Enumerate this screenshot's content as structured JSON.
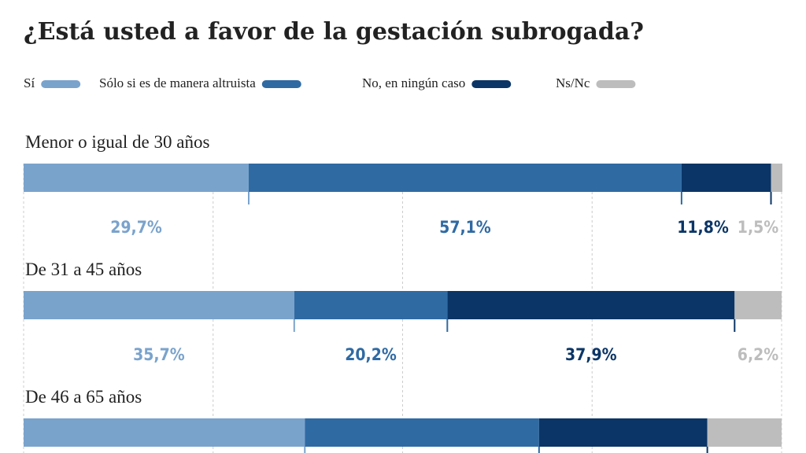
{
  "chart_data": {
    "type": "stacked-bar-horizontal",
    "title": "¿Está usted a favor de la gestación subrogada?",
    "categories": [
      "Menor o igual de 30 años",
      "De 31 a 45 años",
      "De 46 a 65 años"
    ],
    "series": [
      {
        "name": "Sí",
        "color": "#7aa3cc",
        "values": [
          29.7,
          35.7,
          37.1
        ],
        "value_labels": [
          "29,7%",
          "35,7%",
          null
        ]
      },
      {
        "name": "Sólo si es de manera altruista",
        "color": "#2f6aa3",
        "values": [
          57.1,
          20.2,
          30.9
        ],
        "value_labels": [
          "57,1%",
          "20,2%",
          null
        ]
      },
      {
        "name": "No, en ningún caso",
        "color": "#0b3566",
        "values": [
          11.8,
          37.9,
          22.2
        ],
        "value_labels": [
          "11,8%",
          "37,9%",
          null
        ]
      },
      {
        "name": "Ns/Nc",
        "color": "#bdbdbd",
        "values": [
          1.5,
          6.2,
          9.8
        ],
        "value_labels": [
          "1,5%",
          "6,2%",
          null
        ]
      }
    ],
    "xlim": [
      0,
      100
    ],
    "xticks": [
      0,
      25,
      50,
      75,
      100
    ],
    "grid": true
  }
}
